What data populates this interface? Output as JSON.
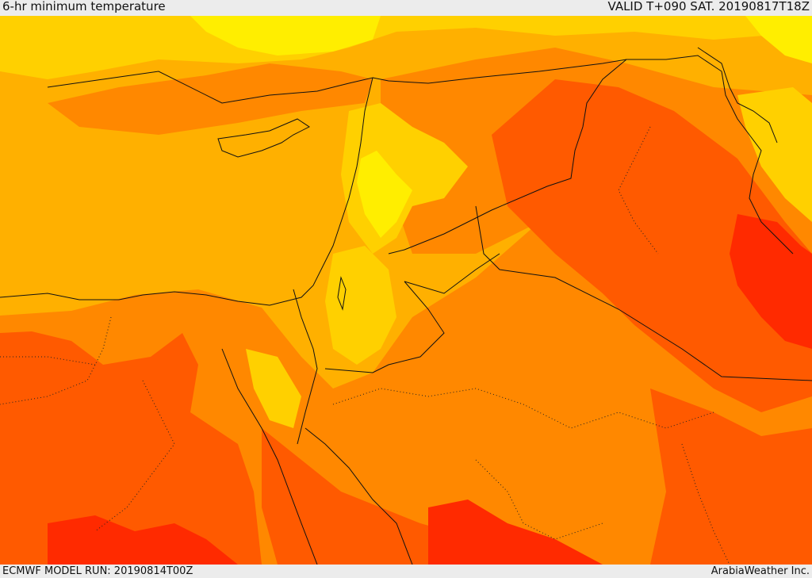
{
  "header": {
    "title": "6-hr minimum temperature",
    "valid_time": "VALID T+090 SAT. 20190817T18Z"
  },
  "footer": {
    "model_run": "ECMWF MODEL RUN: 20190814T00Z",
    "credit": "ArabiaWeather Inc."
  },
  "map": {
    "field": "6-hr minimum temperature",
    "region": "Eastern Mediterranean, Levant, Egypt, northern Arabia, Iraq",
    "colors": {
      "coolest": "#ffee00",
      "cool": "#ffd000",
      "sea": "#ffb000",
      "warm": "#ff8800",
      "hot": "#ff5a00",
      "hottest": "#ff2a00",
      "borders": "#111111"
    }
  }
}
